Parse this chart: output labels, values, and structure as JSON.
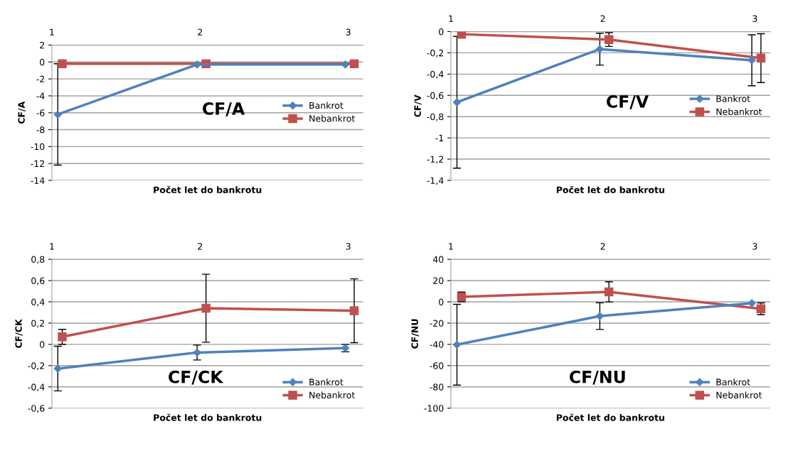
{
  "chart_data": [
    {
      "type": "line",
      "ylabel": "CF/A",
      "xlabel": "Počet let do bankrotu",
      "annotations": [
        "CF/A"
      ],
      "legend": "right",
      "grid": "y",
      "line_style": "solid",
      "xlim": [
        1,
        3.1
      ],
      "xticks": [
        1,
        2,
        3
      ],
      "ylim": [
        -14,
        2
      ],
      "yticks": [
        -14,
        -12,
        -10,
        -8,
        -6,
        -4,
        -2,
        0,
        2
      ],
      "series": [
        {
          "name": "Bankrot",
          "color": "#4f81bd",
          "marker": "diamond",
          "x": [
            1.04,
            1.98,
            2.98
          ],
          "values": [
            -6.2,
            -0.3,
            -0.3
          ],
          "errors": [
            6,
            null,
            null
          ]
        },
        {
          "name": "Nebankrot",
          "color": "#c0504d",
          "marker": "square",
          "x": [
            1.07,
            2.04,
            3.04
          ],
          "values": [
            -0.2,
            -0.2,
            -0.2
          ],
          "errors": [
            null,
            null,
            null
          ]
        }
      ]
    },
    {
      "type": "line",
      "ylabel": "CF/V",
      "xlabel": "Počet let do bankrotu",
      "annotations": [
        "CF/V"
      ],
      "legend": "right",
      "grid": "y",
      "line_style": "solid",
      "xlim": [
        1,
        3.1
      ],
      "xticks": [
        1,
        2,
        3
      ],
      "ylim": [
        -1.4,
        0
      ],
      "yticks": [
        {
          "value": -1.4,
          "label": "-1,4"
        },
        {
          "value": -1.2,
          "label": "-1,2"
        },
        {
          "value": -1,
          "label": "-1"
        },
        {
          "value": -0.8,
          "label": "-0,8"
        },
        {
          "value": -0.6,
          "label": "-0,6"
        },
        {
          "value": -0.4,
          "label": "-0,4"
        },
        {
          "value": -0.2,
          "label": "-0,2"
        },
        {
          "value": 0,
          "label": "0"
        }
      ],
      "series": [
        {
          "name": "Bankrot",
          "color": "#4f81bd",
          "marker": "diamond",
          "x": [
            1.04,
            1.98,
            2.98
          ],
          "values": [
            -0.665,
            -0.165,
            -0.27
          ],
          "errors": [
            0.62,
            0.15,
            0.24
          ]
        },
        {
          "name": "Nebankrot",
          "color": "#c0504d",
          "marker": "square",
          "x": [
            1.07,
            2.04,
            3.04
          ],
          "values": [
            -0.025,
            -0.075,
            -0.25
          ],
          "errors": [
            null,
            0.065,
            0.23
          ]
        }
      ]
    },
    {
      "type": "line",
      "ylabel": "CF/CK",
      "xlabel": "Počet let do bankrotu",
      "annotations": [
        "CF/CK"
      ],
      "legend": "bottom right",
      "grid": "y",
      "line_style": "solid",
      "xlim": [
        1,
        3.1
      ],
      "xticks": [
        1,
        2,
        3
      ],
      "ylim": [
        -0.6,
        0.8
      ],
      "yticks": [
        {
          "value": -0.6,
          "label": "-0,6"
        },
        {
          "value": -0.4,
          "label": "-0,4"
        },
        {
          "value": -0.2,
          "label": "-0,2"
        },
        {
          "value": 0,
          "label": "0"
        },
        {
          "value": 0.2,
          "label": "0,2"
        },
        {
          "value": 0.4,
          "label": "0,4"
        },
        {
          "value": 0.6,
          "label": "0,6"
        },
        {
          "value": 0.8,
          "label": "0,8"
        }
      ],
      "series": [
        {
          "name": "Bankrot",
          "color": "#4f81bd",
          "marker": "diamond",
          "x": [
            1.04,
            1.98,
            2.98
          ],
          "values": [
            -0.228,
            -0.077,
            -0.035
          ],
          "errors": [
            0.21,
            0.07,
            0.035
          ]
        },
        {
          "name": "Nebankrot",
          "color": "#c0504d",
          "marker": "square",
          "x": [
            1.07,
            2.04,
            3.04
          ],
          "values": [
            0.071,
            0.34,
            0.316
          ],
          "errors": [
            0.07,
            0.32,
            0.3
          ]
        }
      ]
    },
    {
      "type": "line",
      "ylabel": "CF/NU",
      "xlabel": "Počet let do bankrotu",
      "annotations": [
        "CF/NU"
      ],
      "legend": "bottom right",
      "grid": "y",
      "line_style": "solid",
      "xlim": [
        1,
        3.1
      ],
      "xticks": [
        1,
        2,
        3
      ],
      "ylim": [
        -100,
        40
      ],
      "yticks": [
        -100,
        -80,
        -60,
        -40,
        -20,
        0,
        20,
        40
      ],
      "series": [
        {
          "name": "Bankrot",
          "color": "#4f81bd",
          "marker": "diamond",
          "x": [
            1.04,
            1.98,
            2.98
          ],
          "values": [
            -40.3,
            -13.4,
            -1.3
          ],
          "errors": [
            38,
            12.6,
            null
          ]
        },
        {
          "name": "Nebankrot",
          "color": "#c0504d",
          "marker": "square",
          "x": [
            1.07,
            2.04,
            3.04
          ],
          "values": [
            4.7,
            9.4,
            -6.5
          ],
          "errors": [
            4.5,
            9.5,
            5.5
          ]
        }
      ]
    }
  ]
}
